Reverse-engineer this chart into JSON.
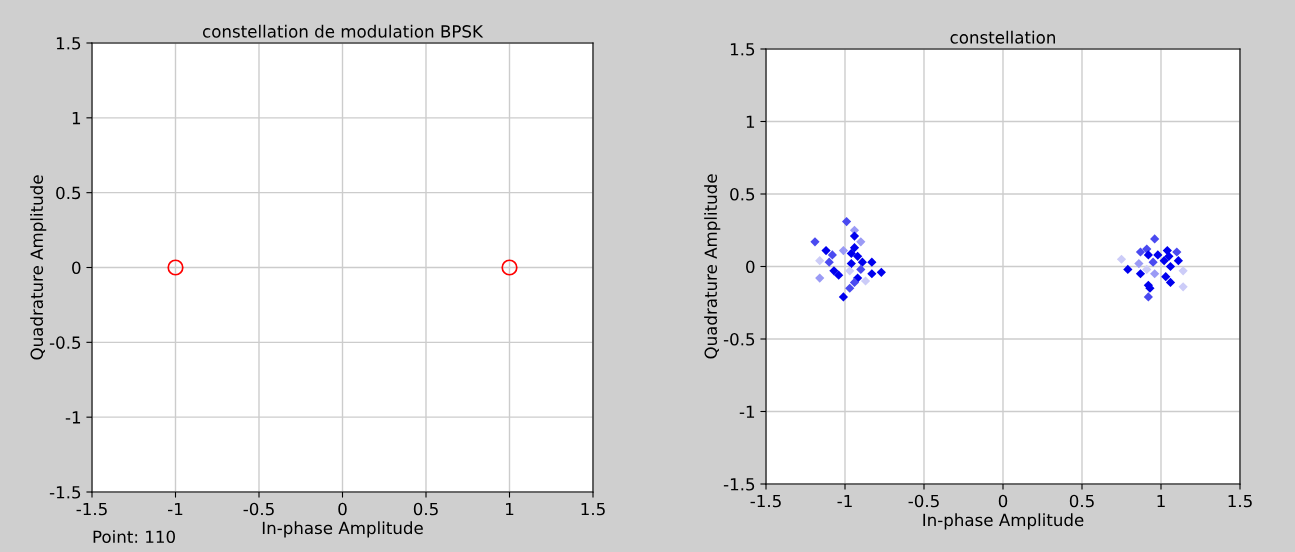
{
  "chart_data": [
    {
      "type": "scatter",
      "title": "constellation de modulation BPSK",
      "xlabel": "In-phase Amplitude",
      "ylabel": "Quadrature Amplitude",
      "annotations": [
        "Point: 110"
      ],
      "marker": "circle",
      "grid": true,
      "xlim": [
        -1.5,
        1.5
      ],
      "ylim": [
        -1.5,
        1.5
      ],
      "xticks": [
        -1.5,
        -1,
        -0.5,
        0,
        0.5,
        1,
        1.5
      ],
      "yticks": [
        -1.5,
        -1,
        -0.5,
        0,
        0.5,
        1,
        1.5
      ],
      "x": [
        -1,
        1
      ],
      "values": [
        0,
        0
      ],
      "color": "#ff0000"
    },
    {
      "type": "scatter",
      "title": "constellation",
      "xlabel": "In-phase Amplitude",
      "ylabel": "Quadrature Amplitude",
      "marker": "diamond",
      "grid": true,
      "xlim": [
        -1.5,
        1.5
      ],
      "ylim": [
        -1.5,
        1.5
      ],
      "xticks": [
        -1.5,
        -1,
        -0.5,
        0,
        0.5,
        1,
        1.5
      ],
      "yticks": [
        -1.5,
        -1,
        -0.5,
        0,
        0.5,
        1,
        1.5
      ],
      "x": [
        -0.99,
        -0.94,
        -0.94,
        -1.19,
        -0.9,
        -0.94,
        -1.12,
        -1.01,
        -0.96,
        -1.08,
        -0.92,
        -1.16,
        -1.1,
        -0.96,
        -0.89,
        -0.83,
        -1.07,
        -1.04,
        -0.97,
        -0.9,
        -0.83,
        -0.77,
        -0.92,
        -0.87,
        -1.16,
        -0.94,
        -0.97,
        -1.01,
        0.96,
        0.91,
        0.87,
        1.04,
        1.1,
        0.92,
        0.98,
        1.05,
        0.75,
        1.11,
        1.02,
        0.95,
        0.79,
        0.86,
        0.91,
        1.06,
        1.14,
        0.87,
        0.96,
        1.03,
        1.06,
        0.92,
        0.93,
        1.14,
        0.92
      ],
      "values": [
        0.31,
        0.25,
        0.21,
        0.17,
        0.17,
        0.13,
        0.11,
        0.11,
        0.09,
        0.08,
        0.07,
        0.04,
        0.03,
        0.02,
        0.03,
        0.03,
        -0.03,
        -0.06,
        -0.03,
        -0.02,
        -0.05,
        -0.04,
        -0.08,
        -0.1,
        -0.08,
        -0.11,
        -0.15,
        -0.21,
        0.19,
        0.12,
        0.1,
        0.11,
        0.1,
        0.08,
        0.08,
        0.07,
        0.05,
        0.04,
        0.04,
        0.03,
        -0.02,
        0.02,
        -0.02,
        0,
        -0.03,
        -0.05,
        -0.05,
        -0.07,
        -0.11,
        -0.13,
        -0.15,
        -0.14,
        -0.21
      ],
      "colors": [
        "#4a4af0",
        "#9a9af5",
        "#0000ee",
        "#4a4af0",
        "#9a9af5",
        "#0000ee",
        "#0000ee",
        "#9a9af5",
        "#0000ee",
        "#4a4af0",
        "#0000ee",
        "#ccccf8",
        "#4a4af0",
        "#0000ee",
        "#0000ee",
        "#0000ee",
        "#0000ee",
        "#0000ee",
        "#ccccf8",
        "#4a4af0",
        "#0000ee",
        "#0000ee",
        "#0000ee",
        "#ccccf8",
        "#9a9af5",
        "#4a4af0",
        "#4a4af0",
        "#0000ee",
        "#4a4af0",
        "#4a4af0",
        "#4a4af0",
        "#0000ee",
        "#4a4af0",
        "#0000ee",
        "#0000ee",
        "#0000ee",
        "#ccccf8",
        "#0000ee",
        "#0000ee",
        "#4a4af0",
        "#0000ee",
        "#9a9af5",
        "#ccccf8",
        "#0000ee",
        "#ccccf8",
        "#0000ee",
        "#9a9af5",
        "#0000ee",
        "#0000ee",
        "#0000ee",
        "#0000ee",
        "#ccccf8",
        "#4a4af0"
      ]
    }
  ]
}
